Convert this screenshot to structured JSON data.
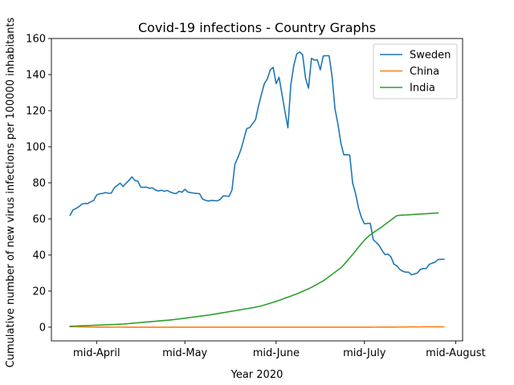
{
  "chart_data": {
    "type": "line",
    "title": "Covid-19 infections - Country Graphs",
    "xlabel": "Year 2020",
    "ylabel": "Cumulative number of new virus infections per 100000 inhabitants",
    "x_start": "2020-04-06",
    "x_ticks": [
      {
        "date": "2020-04-15",
        "label": "mid-April"
      },
      {
        "date": "2020-05-15",
        "label": "mid-May"
      },
      {
        "date": "2020-06-15",
        "label": "mid-June"
      },
      {
        "date": "2020-07-15",
        "label": "mid-July"
      },
      {
        "date": "2020-08-15",
        "label": "mid-August"
      }
    ],
    "ylim": [
      -7.6,
      160
    ],
    "y_ticks": [
      0,
      20,
      40,
      60,
      80,
      100,
      120,
      140,
      160
    ],
    "grid": false,
    "legend": {
      "placement": "top-right"
    },
    "series": [
      {
        "name": "Sweden",
        "color": "#1f77b4",
        "values": [
          62.0,
          65.0,
          65.8,
          66.8,
          68.2,
          68.6,
          68.5,
          69.5,
          70.2,
          73.2,
          73.9,
          74.1,
          74.6,
          74.2,
          74.3,
          77.2,
          78.6,
          79.8,
          78.0,
          79.8,
          81.4,
          83.3,
          81.3,
          81.0,
          77.6,
          77.5,
          77.6,
          77.0,
          77.2,
          76.0,
          75.5,
          75.9,
          75.3,
          75.8,
          74.9,
          74.3,
          74.0,
          75.3,
          74.8,
          76.4,
          74.9,
          74.6,
          74.3,
          74.1,
          74.0,
          71.0,
          70.3,
          69.9,
          70.3,
          70.1,
          70.0,
          70.8,
          72.8,
          72.7,
          72.5,
          76.0,
          90.4,
          94.0,
          98.2,
          104.0,
          110.1,
          110.6,
          112.8,
          115.0,
          122.5,
          129.0,
          135.0,
          137.5,
          142.6,
          144.0,
          135.0,
          138.5,
          129.0,
          119.5,
          110.5,
          134.5,
          145.0,
          151.5,
          152.5,
          151.0,
          138.0,
          132.5,
          149.0,
          148.0,
          148.2,
          142.6,
          150.3,
          150.5,
          150.4,
          139.0,
          121.0,
          112.5,
          102.0,
          95.5,
          95.6,
          95.4,
          79.8,
          74.0,
          66.0,
          60.7,
          57.3,
          57.5,
          57.5,
          48.5,
          47.0,
          45.3,
          42.5,
          40.2,
          40.5,
          39.0,
          35.0,
          34.0,
          32.0,
          31.0,
          30.5,
          30.5,
          29.0,
          29.5,
          30.0,
          32.0,
          32.5,
          32.5,
          34.8,
          35.5,
          36.0,
          37.5,
          37.6,
          37.6
        ]
      },
      {
        "name": "China",
        "color": "#ff7f0e",
        "values": [
          0.32,
          0.28,
          0.25,
          0.21,
          0.17,
          0.14,
          0.1,
          0.08,
          0.07,
          0.05,
          0.04,
          0.03,
          0.02,
          0.02,
          0.01,
          0.01,
          0.01,
          0.01,
          0.01,
          0.0,
          0.0,
          0.0,
          0.0,
          0.0,
          0.0,
          0.0,
          0.0,
          0.0,
          0.0,
          0.0,
          0.0,
          0.0,
          0.0,
          0.0,
          0.0,
          0.0,
          0.0,
          0.0,
          0.0,
          0.0,
          0.0,
          0.0,
          0.0,
          0.0,
          0.0,
          0.0,
          0.0,
          0.0,
          0.0,
          0.0,
          0.0,
          0.0,
          0.0,
          0.0,
          0.0,
          0.0,
          0.0,
          0.0,
          0.0,
          0.0,
          0.0,
          0.0,
          0.0,
          0.0,
          0.0,
          0.0,
          0.0,
          0.0,
          0.0,
          0.0,
          0.0,
          0.0,
          0.0,
          0.0,
          0.0,
          0.0,
          0.0,
          0.0,
          0.0,
          0.0,
          0.0,
          0.0,
          0.0,
          0.0,
          0.0,
          0.0,
          0.0,
          0.0,
          0.0,
          0.0,
          0.0,
          0.0,
          0.0,
          0.0,
          0.0,
          0.0,
          0.0,
          0.0,
          0.0,
          0.0,
          0.0,
          0.0,
          0.0,
          0.01,
          0.01,
          0.02,
          0.02,
          0.03,
          0.04,
          0.05,
          0.06,
          0.07,
          0.08,
          0.1,
          0.11,
          0.13,
          0.14,
          0.16,
          0.17,
          0.18,
          0.19,
          0.2,
          0.2,
          0.2,
          0.21,
          0.21,
          0.21,
          0.21
        ]
      },
      {
        "name": "India",
        "color": "#2ca02c",
        "values": [
          0.5,
          0.57,
          0.63,
          0.69,
          0.76,
          0.83,
          0.89,
          0.96,
          1.03,
          1.09,
          1.16,
          1.22,
          1.29,
          1.36,
          1.42,
          1.49,
          1.56,
          1.64,
          1.73,
          1.87,
          2.01,
          2.15,
          2.29,
          2.43,
          2.57,
          2.71,
          2.86,
          3.0,
          3.14,
          3.28,
          3.42,
          3.56,
          3.7,
          3.84,
          3.98,
          4.15,
          4.34,
          4.56,
          4.77,
          4.98,
          5.19,
          5.41,
          5.62,
          5.83,
          6.05,
          6.26,
          6.47,
          6.68,
          6.93,
          7.2,
          7.48,
          7.75,
          8.03,
          8.3,
          8.58,
          8.85,
          9.13,
          9.4,
          9.68,
          9.95,
          10.23,
          10.5,
          10.8,
          11.1,
          11.45,
          11.85,
          12.3,
          12.79,
          13.3,
          13.81,
          14.32,
          14.85,
          15.45,
          16.05,
          16.65,
          17.25,
          17.85,
          18.45,
          19.12,
          19.84,
          20.56,
          21.28,
          22.06,
          22.96,
          23.86,
          24.76,
          25.66,
          26.8,
          28.02,
          29.24,
          30.47,
          31.69,
          32.91,
          34.6,
          36.5,
          38.4,
          40.32,
          42.35,
          44.37,
          46.35,
          48.2,
          49.84,
          51.19,
          52.38,
          53.48,
          54.55,
          55.7,
          56.93,
          58.16,
          59.4,
          60.62,
          61.8,
          62.0,
          62.1,
          62.2,
          62.3,
          62.4,
          62.5,
          62.6,
          62.7,
          62.8,
          62.9,
          63.0,
          63.1,
          63.2,
          63.3
        ]
      }
    ]
  }
}
